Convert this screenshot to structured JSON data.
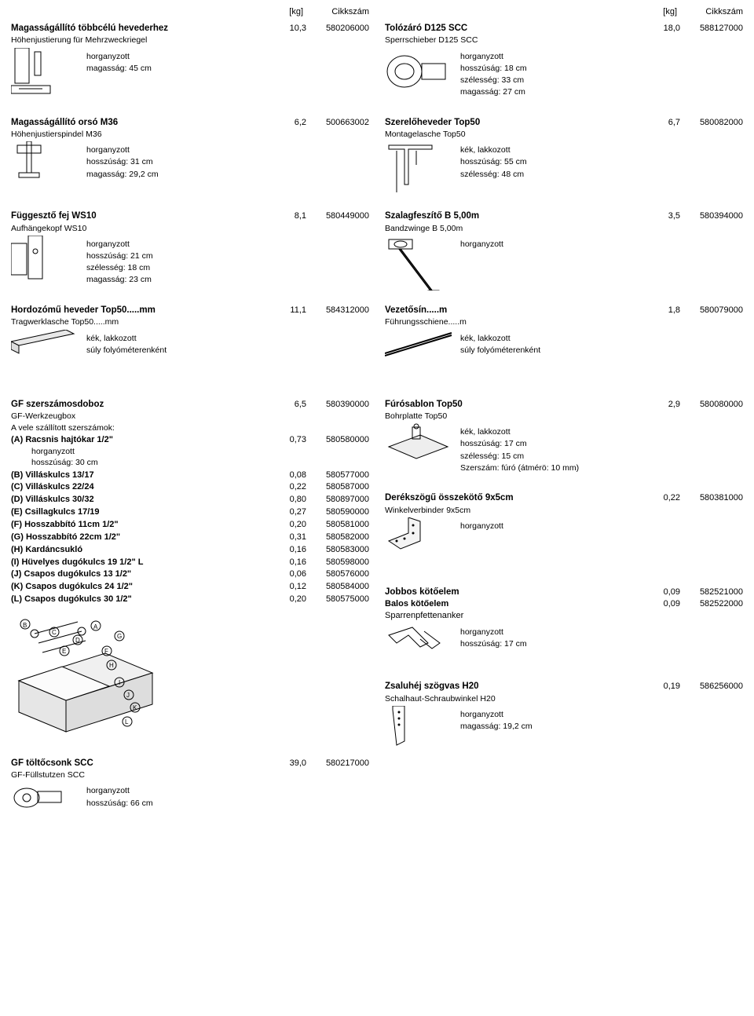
{
  "headers": {
    "kg": "[kg]",
    "num": "Cikkszám"
  },
  "left": [
    {
      "title": "Magasságállító többcélú hevederhez",
      "subtitle": "Höhenjustierung für Mehrzweckriegel",
      "kg": "10,3",
      "num": "580206000",
      "specs": [
        "horganyzott",
        "magasság: 45 cm"
      ],
      "svg": "bracket1"
    },
    {
      "title": "Magasságállító orsó M36",
      "subtitle": "Höhenjustierspindel M36",
      "kg": "6,2",
      "num": "500663002",
      "specs": [
        "horganyzott",
        "hosszúság: 31 cm",
        "magasság: 29,2 cm"
      ],
      "svg": "spindle"
    },
    {
      "title": "Függesztő fej WS10",
      "subtitle": "Aufhängekopf WS10",
      "kg": "8,1",
      "num": "580449000",
      "specs": [
        "horganyzott",
        "hosszúság: 21 cm",
        "szélesség: 18 cm",
        "magasság: 23 cm"
      ],
      "svg": "head"
    },
    {
      "title": "Hordozómű heveder Top50.....mm",
      "subtitle": "Tragwerklasche Top50.....mm",
      "kg": "11,1",
      "num": "584312000",
      "specs": [
        "kék, lakkozott",
        "súly folyóméterenként"
      ],
      "svg": "beam"
    }
  ],
  "toolbox": {
    "title": "GF szerszámosdoboz",
    "subtitle": "GF-Werkzeugbox",
    "kg": "6,5",
    "num": "580390000",
    "intro": "A vele szállított szerszámok:",
    "rows": [
      {
        "lab": "(A) Racsnis hajtókar 1/2\"",
        "kg": "0,73",
        "num": "580580000",
        "bold": true,
        "extra": [
          "horganyzott",
          "hosszúság: 30 cm"
        ]
      },
      {
        "lab": "(B) Villáskulcs 13/17",
        "kg": "0,08",
        "num": "580577000",
        "bold": true
      },
      {
        "lab": "(C) Villáskulcs 22/24",
        "kg": "0,22",
        "num": "580587000",
        "bold": true
      },
      {
        "lab": "(D) Villáskulcs 30/32",
        "kg": "0,80",
        "num": "580897000",
        "bold": true
      },
      {
        "lab": "(E) Csillagkulcs 17/19",
        "kg": "0,27",
        "num": "580590000",
        "bold": true
      },
      {
        "lab": "(F) Hosszabbító 11cm 1/2\"",
        "kg": "0,20",
        "num": "580581000",
        "bold": true
      },
      {
        "lab": "(G) Hosszabbító 22cm 1/2\"",
        "kg": "0,31",
        "num": "580582000",
        "bold": true
      },
      {
        "lab": "(H) Kardáncsukló",
        "kg": "0,16",
        "num": "580583000",
        "bold": true
      },
      {
        "lab": "(I) Hüvelyes dugókulcs 19 1/2\" L",
        "kg": "0,16",
        "num": "580598000",
        "bold": true
      },
      {
        "lab": "(J) Csapos dugókulcs 13 1/2\"",
        "kg": "0,06",
        "num": "580576000",
        "bold": true
      },
      {
        "lab": "(K) Csapos dugókulcs 24 1/2\"",
        "kg": "0,12",
        "num": "580584000",
        "bold": true
      },
      {
        "lab": "(L) Csapos dugókulcs 30 1/2\"",
        "kg": "0,20",
        "num": "580575000",
        "bold": true
      }
    ],
    "svg": "toolbox"
  },
  "leftLast": {
    "title": "GF töltőcsonk SCC",
    "subtitle": "GF-Füllstutzen SCC",
    "kg": "39,0",
    "num": "580217000",
    "specs": [
      "horganyzott",
      "hosszúság: 66 cm"
    ],
    "svg": "filler"
  },
  "right": [
    {
      "title": "Tolózáró D125 SCC",
      "subtitle": "Sperrschieber D125 SCC",
      "kg": "18,0",
      "num": "588127000",
      "specs": [
        "horganyzott",
        "hosszúság: 18 cm",
        "szélesség: 33 cm",
        "magasság: 27 cm"
      ],
      "svg": "valve"
    },
    {
      "title": "Szerelőheveder Top50",
      "subtitle": "Montagelasche Top50",
      "kg": "6,7",
      "num": "580082000",
      "specs": [
        "kék, lakkozott",
        "hosszúság: 55 cm",
        "szélesség: 48 cm"
      ],
      "svg": "lasche"
    },
    {
      "title": "Szalagfeszítő B 5,00m",
      "subtitle": "Bandzwinge B 5,00m",
      "kg": "3,5",
      "num": "580394000",
      "specs": [
        "horganyzott"
      ],
      "svg": "band"
    },
    {
      "title": "Vezetősín.....m",
      "subtitle": "Führungsschiene.....m",
      "kg": "1,8",
      "num": "580079000",
      "specs": [
        "kék, lakkozott",
        "súly folyóméterenként"
      ],
      "svg": "rail"
    },
    {
      "title": "Fúrósablon Top50",
      "subtitle": "Bohrplatte Top50",
      "kg": "2,9",
      "num": "580080000",
      "specs": [
        "kék, lakkozott",
        "hosszúság: 17 cm",
        "szélesség: 15 cm",
        "Szerszám: fúró (átmérö: 10 mm)"
      ],
      "svg": "plate"
    },
    {
      "title": "Derékszögű összekötő 9x5cm",
      "subtitle": "Winkelverbinder 9x5cm",
      "kg": "0,22",
      "num": "580381000",
      "specs": [
        "horganyzott"
      ],
      "svg": "angle"
    },
    {
      "double": true,
      "title1": "Jobbos kötőelem",
      "kg1": "0,09",
      "num1": "582521000",
      "title2": "Balos kötőelem",
      "kg2": "0,09",
      "num2": "582522000",
      "subtitle": "Sparrenpfettenanker",
      "specs": [
        "horganyzott",
        "hosszúság: 17 cm"
      ],
      "svg": "anchor"
    },
    {
      "title": "Zsaluhéj szögvas H20",
      "subtitle": "Schalhaut-Schraubwinkel H20",
      "kg": "0,19",
      "num": "586256000",
      "specs": [
        "horganyzott",
        "magasság: 19,2 cm"
      ],
      "svg": "winkel"
    }
  ]
}
